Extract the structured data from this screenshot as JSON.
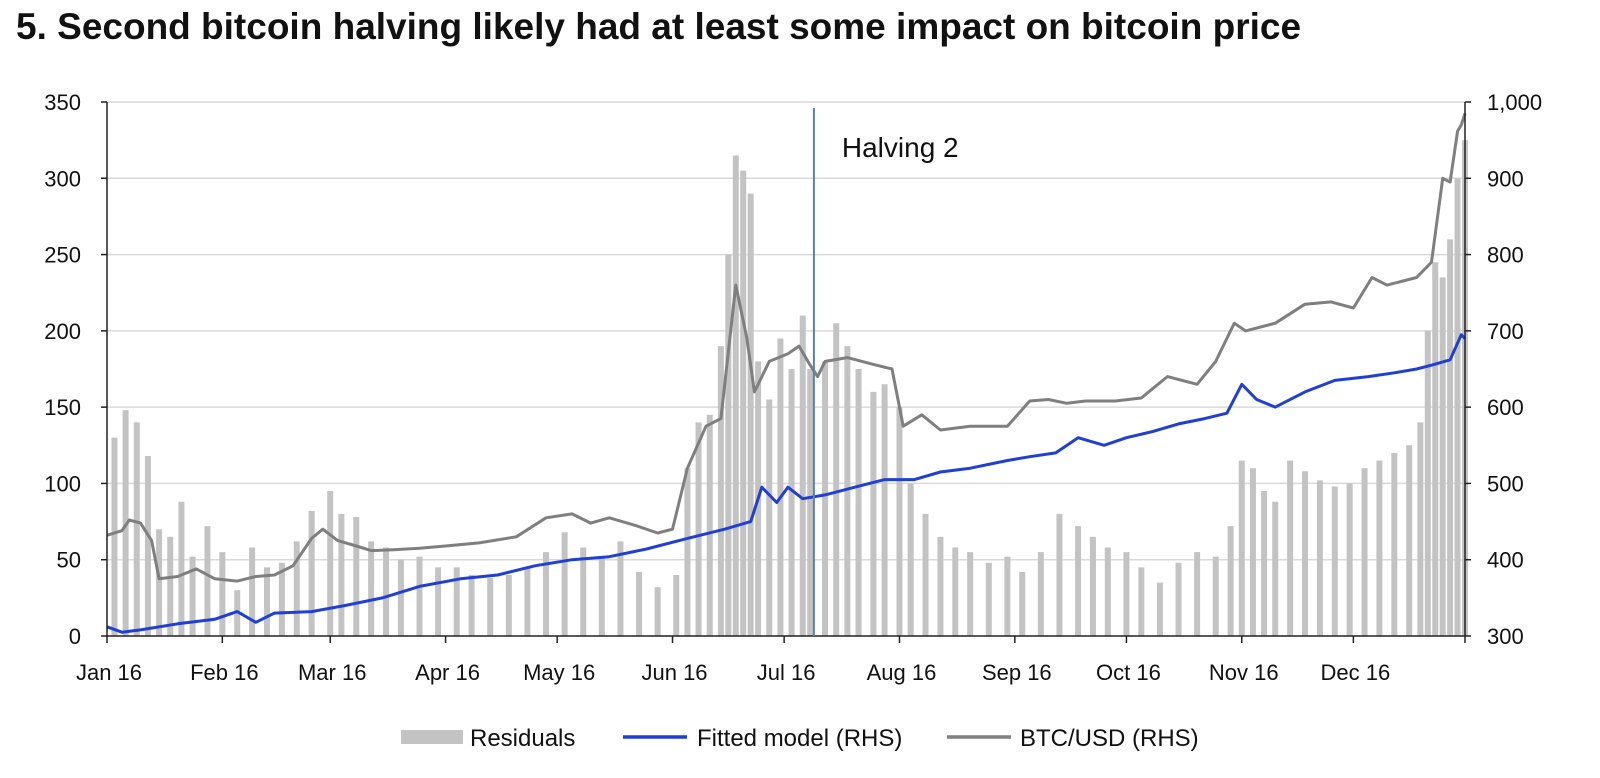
{
  "title": "5. Second bitcoin halving likely had at least some impact on bitcoin price",
  "chart_data": {
    "type": "bar+line",
    "title": "5. Second bitcoin halving likely had at least some impact on bitcoin price",
    "x_axis": {
      "type": "date",
      "ticks": [
        "2016-01-01",
        "2016-02-01",
        "2016-03-01",
        "2016-04-01",
        "2016-05-01",
        "2016-06-01",
        "2016-07-01",
        "2016-08-01",
        "2016-09-01",
        "2016-10-01",
        "2016-11-01",
        "2016-12-01"
      ],
      "tick_labels": [
        "Jan 16",
        "Feb 16",
        "Mar 16",
        "Apr 16",
        "May 16",
        "Jun 16",
        "Jul 16",
        "Aug 16",
        "Sep 16",
        "Oct 16",
        "Nov 16",
        "Dec 16"
      ],
      "range": [
        "2016-01-01",
        "2016-12-31"
      ]
    },
    "y_left": {
      "range": [
        0,
        350
      ],
      "ticks": [
        0,
        50,
        100,
        150,
        200,
        250,
        300,
        350
      ],
      "tick_labels": [
        "0",
        "50",
        "100",
        "150",
        "200",
        "250",
        "300",
        "350"
      ]
    },
    "y_right": {
      "range": [
        300,
        1000
      ],
      "ticks": [
        300,
        400,
        500,
        600,
        700,
        800,
        900,
        1000
      ],
      "tick_labels": [
        "300",
        "400",
        "500",
        "600",
        "700",
        "800",
        "900",
        "1,000"
      ]
    },
    "grid": "horizontal",
    "legend_position": "bottom",
    "annotations": [
      {
        "text": "Halving 2",
        "date": "2016-07-09"
      }
    ],
    "colors": {
      "residuals": "#c3c3c3",
      "fitted": "#1f3fd8",
      "btc": "#7f7f7f",
      "halving_line": "#5b7fb0",
      "grid": "#d9d9d9"
    },
    "series": [
      {
        "name": "Residuals",
        "type": "bar",
        "axis": "left",
        "points": [
          [
            "2016-01-03",
            130
          ],
          [
            "2016-01-06",
            148
          ],
          [
            "2016-01-09",
            140
          ],
          [
            "2016-01-12",
            118
          ],
          [
            "2016-01-15",
            70
          ],
          [
            "2016-01-18",
            65
          ],
          [
            "2016-01-21",
            88
          ],
          [
            "2016-01-24",
            52
          ],
          [
            "2016-01-28",
            72
          ],
          [
            "2016-02-01",
            55
          ],
          [
            "2016-02-05",
            30
          ],
          [
            "2016-02-09",
            58
          ],
          [
            "2016-02-13",
            45
          ],
          [
            "2016-02-17",
            48
          ],
          [
            "2016-02-21",
            62
          ],
          [
            "2016-02-25",
            82
          ],
          [
            "2016-03-01",
            95
          ],
          [
            "2016-03-04",
            80
          ],
          [
            "2016-03-08",
            78
          ],
          [
            "2016-03-12",
            62
          ],
          [
            "2016-03-16",
            58
          ],
          [
            "2016-03-20",
            50
          ],
          [
            "2016-03-25",
            52
          ],
          [
            "2016-03-30",
            45
          ],
          [
            "2016-04-04",
            45
          ],
          [
            "2016-04-08",
            40
          ],
          [
            "2016-04-13",
            38
          ],
          [
            "2016-04-18",
            40
          ],
          [
            "2016-04-23",
            45
          ],
          [
            "2016-04-28",
            55
          ],
          [
            "2016-05-03",
            68
          ],
          [
            "2016-05-08",
            58
          ],
          [
            "2016-05-13",
            52
          ],
          [
            "2016-05-18",
            62
          ],
          [
            "2016-05-23",
            42
          ],
          [
            "2016-05-28",
            32
          ],
          [
            "2016-06-02",
            40
          ],
          [
            "2016-06-05",
            110
          ],
          [
            "2016-06-08",
            140
          ],
          [
            "2016-06-11",
            145
          ],
          [
            "2016-06-14",
            190
          ],
          [
            "2016-06-16",
            250
          ],
          [
            "2016-06-18",
            315
          ],
          [
            "2016-06-20",
            305
          ],
          [
            "2016-06-22",
            290
          ],
          [
            "2016-06-24",
            180
          ],
          [
            "2016-06-27",
            155
          ],
          [
            "2016-06-30",
            195
          ],
          [
            "2016-07-03",
            175
          ],
          [
            "2016-07-06",
            210
          ],
          [
            "2016-07-08",
            175
          ],
          [
            "2016-07-12",
            180
          ],
          [
            "2016-07-15",
            205
          ],
          [
            "2016-07-18",
            190
          ],
          [
            "2016-07-21",
            175
          ],
          [
            "2016-07-25",
            160
          ],
          [
            "2016-07-28",
            165
          ],
          [
            "2016-08-01",
            150
          ],
          [
            "2016-08-04",
            100
          ],
          [
            "2016-08-08",
            80
          ],
          [
            "2016-08-12",
            65
          ],
          [
            "2016-08-16",
            58
          ],
          [
            "2016-08-20",
            55
          ],
          [
            "2016-08-25",
            48
          ],
          [
            "2016-08-30",
            52
          ],
          [
            "2016-09-03",
            42
          ],
          [
            "2016-09-08",
            55
          ],
          [
            "2016-09-13",
            80
          ],
          [
            "2016-09-18",
            72
          ],
          [
            "2016-09-22",
            65
          ],
          [
            "2016-09-26",
            58
          ],
          [
            "2016-10-01",
            55
          ],
          [
            "2016-10-05",
            45
          ],
          [
            "2016-10-10",
            35
          ],
          [
            "2016-10-15",
            48
          ],
          [
            "2016-10-20",
            55
          ],
          [
            "2016-10-25",
            52
          ],
          [
            "2016-10-29",
            72
          ],
          [
            "2016-11-01",
            115
          ],
          [
            "2016-11-04",
            110
          ],
          [
            "2016-11-07",
            95
          ],
          [
            "2016-11-10",
            88
          ],
          [
            "2016-11-14",
            115
          ],
          [
            "2016-11-18",
            108
          ],
          [
            "2016-11-22",
            102
          ],
          [
            "2016-11-26",
            98
          ],
          [
            "2016-11-30",
            100
          ],
          [
            "2016-12-04",
            110
          ],
          [
            "2016-12-08",
            115
          ],
          [
            "2016-12-12",
            120
          ],
          [
            "2016-12-16",
            125
          ],
          [
            "2016-12-19",
            140
          ],
          [
            "2016-12-21",
            200
          ],
          [
            "2016-12-23",
            245
          ],
          [
            "2016-12-25",
            235
          ],
          [
            "2016-12-27",
            260
          ],
          [
            "2016-12-29",
            300
          ],
          [
            "2016-12-31",
            325
          ]
        ]
      },
      {
        "name": "Fitted model (RHS)",
        "type": "line",
        "axis": "right",
        "points": [
          [
            "2016-01-01",
            312
          ],
          [
            "2016-01-05",
            305
          ],
          [
            "2016-01-10",
            308
          ],
          [
            "2016-01-20",
            316
          ],
          [
            "2016-01-30",
            322
          ],
          [
            "2016-02-05",
            332
          ],
          [
            "2016-02-10",
            318
          ],
          [
            "2016-02-15",
            330
          ],
          [
            "2016-02-25",
            332
          ],
          [
            "2016-03-05",
            340
          ],
          [
            "2016-03-15",
            350
          ],
          [
            "2016-03-25",
            365
          ],
          [
            "2016-04-05",
            375
          ],
          [
            "2016-04-15",
            380
          ],
          [
            "2016-04-25",
            392
          ],
          [
            "2016-05-05",
            400
          ],
          [
            "2016-05-15",
            404
          ],
          [
            "2016-05-25",
            414
          ],
          [
            "2016-06-05",
            428
          ],
          [
            "2016-06-15",
            440
          ],
          [
            "2016-06-22",
            450
          ],
          [
            "2016-06-25",
            495
          ],
          [
            "2016-06-29",
            475
          ],
          [
            "2016-07-02",
            495
          ],
          [
            "2016-07-06",
            480
          ],
          [
            "2016-07-12",
            485
          ],
          [
            "2016-07-20",
            495
          ],
          [
            "2016-07-28",
            505
          ],
          [
            "2016-08-05",
            505
          ],
          [
            "2016-08-12",
            515
          ],
          [
            "2016-08-20",
            520
          ],
          [
            "2016-08-30",
            530
          ],
          [
            "2016-09-05",
            535
          ],
          [
            "2016-09-12",
            540
          ],
          [
            "2016-09-18",
            560
          ],
          [
            "2016-09-25",
            550
          ],
          [
            "2016-10-01",
            560
          ],
          [
            "2016-10-08",
            568
          ],
          [
            "2016-10-15",
            578
          ],
          [
            "2016-10-22",
            585
          ],
          [
            "2016-10-28",
            592
          ],
          [
            "2016-11-01",
            630
          ],
          [
            "2016-11-05",
            610
          ],
          [
            "2016-11-10",
            600
          ],
          [
            "2016-11-18",
            620
          ],
          [
            "2016-11-26",
            635
          ],
          [
            "2016-12-05",
            640
          ],
          [
            "2016-12-12",
            645
          ],
          [
            "2016-12-18",
            650
          ],
          [
            "2016-12-22",
            655
          ],
          [
            "2016-12-27",
            662
          ],
          [
            "2016-12-30",
            695
          ],
          [
            "2016-12-31",
            690
          ]
        ]
      },
      {
        "name": "BTC/USD (RHS)",
        "type": "line",
        "axis": "right",
        "points": [
          [
            "2016-01-01",
            432
          ],
          [
            "2016-01-05",
            438
          ],
          [
            "2016-01-07",
            452
          ],
          [
            "2016-01-10",
            448
          ],
          [
            "2016-01-13",
            425
          ],
          [
            "2016-01-15",
            375
          ],
          [
            "2016-01-20",
            378
          ],
          [
            "2016-01-25",
            388
          ],
          [
            "2016-01-30",
            375
          ],
          [
            "2016-02-05",
            372
          ],
          [
            "2016-02-10",
            378
          ],
          [
            "2016-02-15",
            380
          ],
          [
            "2016-02-20",
            392
          ],
          [
            "2016-02-25",
            428
          ],
          [
            "2016-02-28",
            440
          ],
          [
            "2016-03-03",
            425
          ],
          [
            "2016-03-08",
            418
          ],
          [
            "2016-03-12",
            412
          ],
          [
            "2016-03-18",
            413
          ],
          [
            "2016-03-25",
            415
          ],
          [
            "2016-04-01",
            418
          ],
          [
            "2016-04-10",
            422
          ],
          [
            "2016-04-20",
            430
          ],
          [
            "2016-04-28",
            455
          ],
          [
            "2016-05-05",
            460
          ],
          [
            "2016-05-10",
            448
          ],
          [
            "2016-05-15",
            455
          ],
          [
            "2016-05-22",
            445
          ],
          [
            "2016-05-28",
            435
          ],
          [
            "2016-06-01",
            440
          ],
          [
            "2016-06-05",
            520
          ],
          [
            "2016-06-10",
            575
          ],
          [
            "2016-06-14",
            585
          ],
          [
            "2016-06-18",
            760
          ],
          [
            "2016-06-21",
            690
          ],
          [
            "2016-06-23",
            620
          ],
          [
            "2016-06-27",
            660
          ],
          [
            "2016-07-02",
            670
          ],
          [
            "2016-07-05",
            680
          ],
          [
            "2016-07-08",
            655
          ],
          [
            "2016-07-10",
            640
          ],
          [
            "2016-07-12",
            660
          ],
          [
            "2016-07-18",
            665
          ],
          [
            "2016-07-25",
            656
          ],
          [
            "2016-07-30",
            650
          ],
          [
            "2016-08-02",
            575
          ],
          [
            "2016-08-07",
            590
          ],
          [
            "2016-08-12",
            570
          ],
          [
            "2016-08-20",
            575
          ],
          [
            "2016-08-30",
            575
          ],
          [
            "2016-09-05",
            608
          ],
          [
            "2016-09-10",
            610
          ],
          [
            "2016-09-15",
            605
          ],
          [
            "2016-09-20",
            608
          ],
          [
            "2016-09-28",
            608
          ],
          [
            "2016-10-05",
            612
          ],
          [
            "2016-10-12",
            640
          ],
          [
            "2016-10-20",
            630
          ],
          [
            "2016-10-25",
            660
          ],
          [
            "2016-10-30",
            710
          ],
          [
            "2016-11-02",
            700
          ],
          [
            "2016-11-10",
            710
          ],
          [
            "2016-11-18",
            735
          ],
          [
            "2016-11-25",
            738
          ],
          [
            "2016-12-01",
            730
          ],
          [
            "2016-12-06",
            770
          ],
          [
            "2016-12-10",
            760
          ],
          [
            "2016-12-18",
            770
          ],
          [
            "2016-12-22",
            790
          ],
          [
            "2016-12-25",
            900
          ],
          [
            "2016-12-27",
            895
          ],
          [
            "2016-12-29",
            962
          ],
          [
            "2016-12-30",
            970
          ],
          [
            "2016-12-31",
            985
          ]
        ]
      }
    ]
  }
}
